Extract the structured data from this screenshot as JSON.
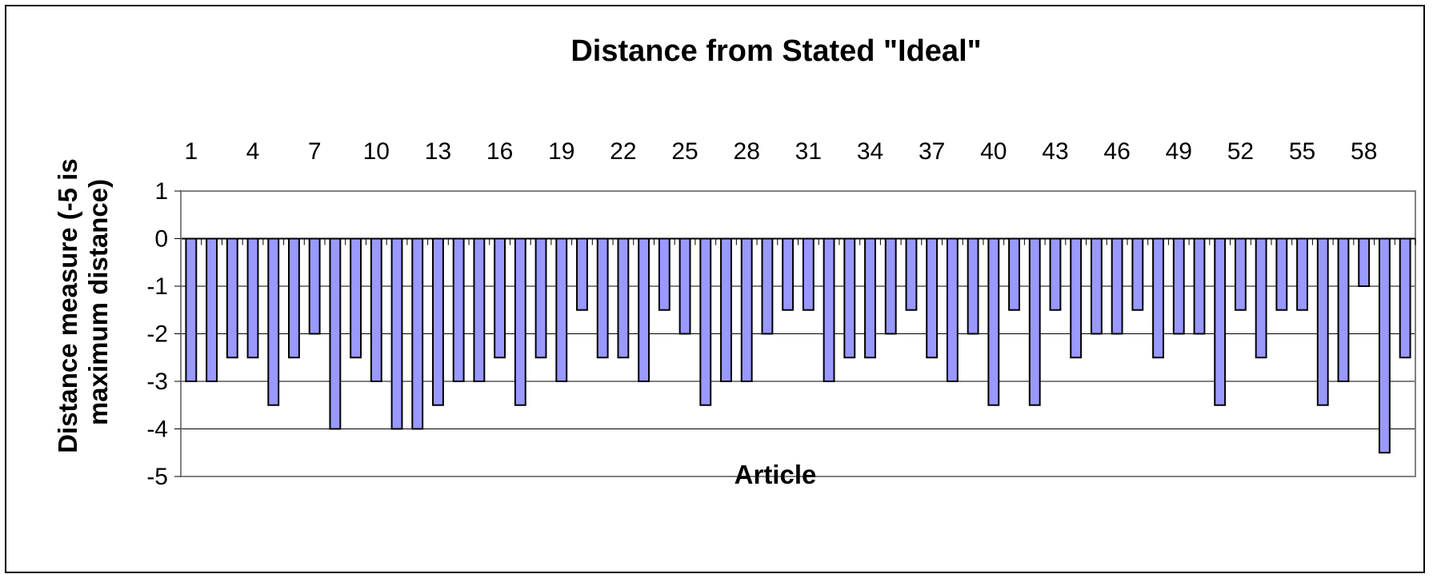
{
  "chart_data": {
    "type": "bar",
    "title": "Distance from Stated \"Ideal\"",
    "xlabel": "Article",
    "ylabel": "Distance measure (-5 is maximum distance)",
    "ylabel_lines": [
      "Distance measure (-5 is",
      "maximum distance)"
    ],
    "categories": [
      1,
      2,
      3,
      4,
      5,
      6,
      7,
      8,
      9,
      10,
      11,
      12,
      13,
      14,
      15,
      16,
      17,
      18,
      19,
      20,
      21,
      22,
      23,
      24,
      25,
      26,
      27,
      28,
      29,
      30,
      31,
      32,
      33,
      34,
      35,
      36,
      37,
      38,
      39,
      40,
      41,
      42,
      43,
      44,
      45,
      46,
      47,
      48,
      49,
      50,
      51,
      52,
      53,
      54,
      55,
      56,
      57,
      58,
      59,
      60
    ],
    "x_tick_labels": [
      "1",
      "4",
      "7",
      "10",
      "13",
      "16",
      "19",
      "22",
      "25",
      "28",
      "31",
      "34",
      "37",
      "40",
      "43",
      "46",
      "49",
      "52",
      "55",
      "58"
    ],
    "x_axis_position": "top",
    "values": [
      -3,
      -3,
      -2.5,
      -2.5,
      -3.5,
      -2.5,
      -2,
      -4,
      -2.5,
      -3,
      -4,
      -4,
      -3.5,
      -3,
      -3,
      -2.5,
      -3.5,
      -2.5,
      -3,
      -1.5,
      -2.5,
      -2.5,
      -3,
      -1.5,
      -2,
      -3.5,
      -3,
      -3,
      -2,
      -1.5,
      -1.5,
      -3,
      -2.5,
      -2.5,
      -2,
      -1.5,
      -2.5,
      -3,
      -2,
      -3.5,
      -1.5,
      -3.5,
      -1.5,
      -2.5,
      -2,
      -2,
      -1.5,
      -2.5,
      -2,
      -2,
      -3.5,
      -1.5,
      -2.5,
      -1.5,
      -1.5,
      -3.5,
      -3,
      -1,
      -4.5,
      -2.5
    ],
    "y_ticks": [
      1,
      0,
      -1,
      -2,
      -3,
      -4,
      -5
    ],
    "ylim": [
      -5,
      1
    ],
    "grid": true,
    "legend": false,
    "colors": {
      "bar_fill": "#9999ff",
      "bar_stroke": "#000000",
      "gridline": "#000000",
      "plot_border": "#808080",
      "background": "#ffffff"
    }
  }
}
